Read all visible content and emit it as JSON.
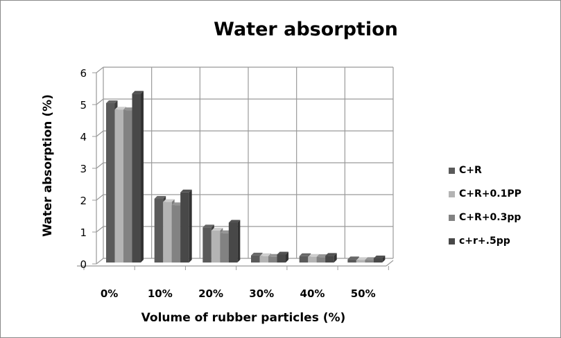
{
  "chart_data": {
    "type": "bar",
    "title": "Water absorption",
    "xlabel": "Volume of rubber particles (%)",
    "ylabel": "Water absorption (%)",
    "categories": [
      "0%",
      "10%",
      "20%",
      "30%",
      "40%",
      "50%"
    ],
    "ylim": [
      0,
      6
    ],
    "yticks": [
      "0",
      "1",
      "2",
      "3",
      "4",
      "5",
      "6"
    ],
    "grid": true,
    "legend_position": "right",
    "style": "3d-clustered-column",
    "series": [
      {
        "name": "C+R",
        "color": "#5a5a5a",
        "values": [
          5.0,
          2.0,
          1.1,
          0.22,
          0.2,
          0.1
        ]
      },
      {
        "name": "C+R+0.1PP",
        "color": "#b4b4b4",
        "values": [
          4.8,
          1.9,
          1.0,
          0.2,
          0.18,
          0.08
        ]
      },
      {
        "name": "C+R+0.3pp",
        "color": "#828282",
        "values": [
          4.78,
          1.8,
          0.92,
          0.18,
          0.17,
          0.08
        ]
      },
      {
        "name": "c+r+.5pp",
        "color": "#484848",
        "values": [
          5.3,
          2.2,
          1.25,
          0.25,
          0.21,
          0.13
        ]
      }
    ]
  }
}
